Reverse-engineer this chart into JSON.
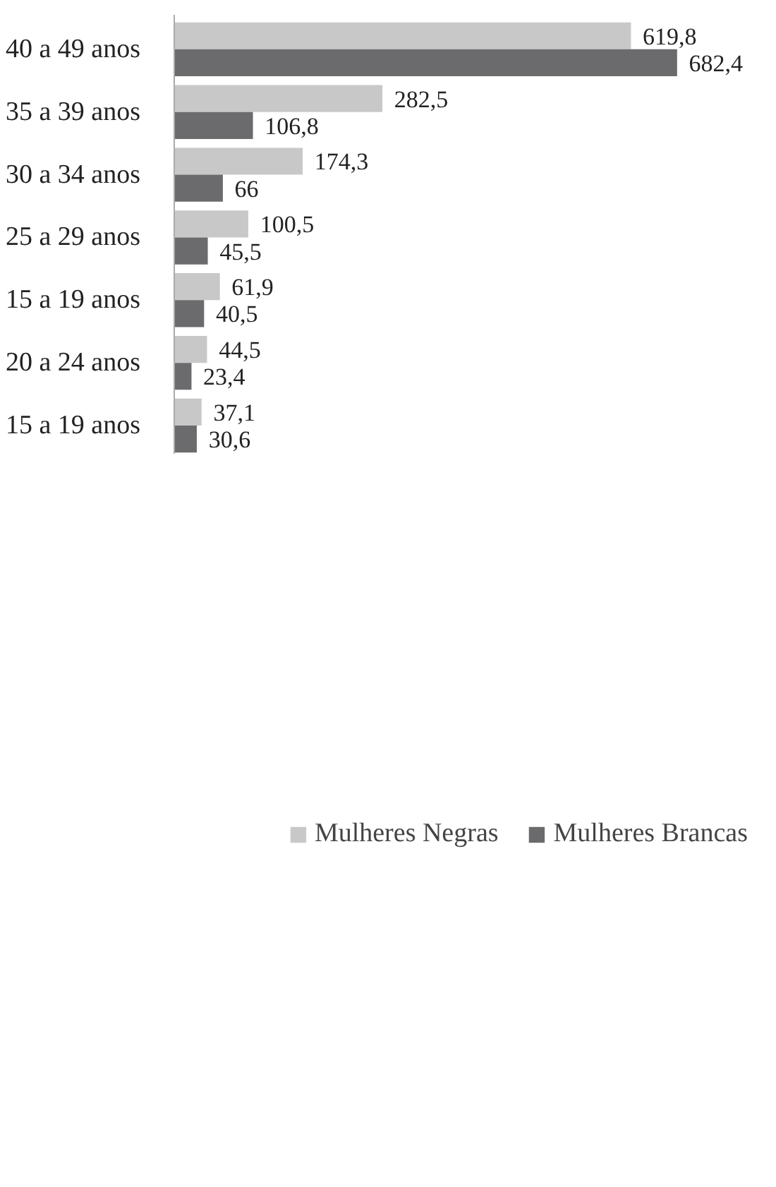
{
  "chart_data": {
    "type": "bar",
    "orientation": "horizontal",
    "categories": [
      "40 a 49 anos",
      "35 a 39 anos",
      "30 a 34 anos",
      "25 a 29 anos",
      "15 a 19 anos",
      "20 a 24 anos",
      "15 a 19 anos"
    ],
    "series": [
      {
        "name": "Mulheres Negras",
        "color": "#c8c8c8",
        "values": [
          619.8,
          282.5,
          174.3,
          100.5,
          61.9,
          44.5,
          37.1
        ],
        "value_labels": [
          "619,8",
          "282,5",
          "174,3",
          "100,5",
          "61,9",
          "44,5",
          "37,1"
        ]
      },
      {
        "name": "Mulheres Brancas",
        "color": "#6b6b6e",
        "values": [
          682.4,
          106.8,
          66,
          45.5,
          40.5,
          23.4,
          30.6
        ],
        "value_labels": [
          "682,4",
          "106,8",
          "66",
          "45,5",
          "40,5",
          "23,4",
          "30,6"
        ]
      }
    ],
    "legend": "bottom",
    "grid": false
  }
}
